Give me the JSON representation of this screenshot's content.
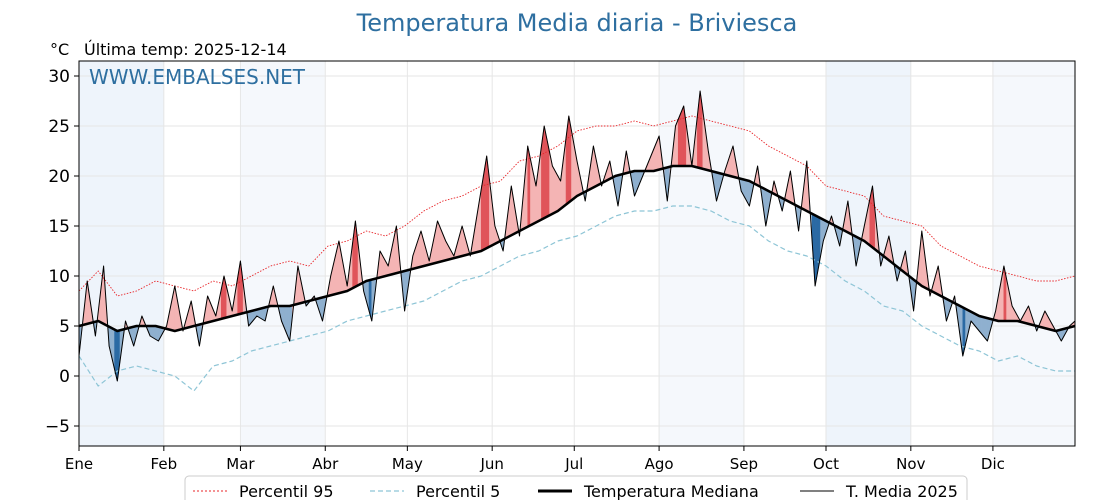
{
  "unit_label": "°C",
  "last_temp_label": "Última temp: 2025-12-14",
  "watermark": "WWW.EMBALSES.NET",
  "colors": {
    "title": "#2e6fa0",
    "p95": "#e8262a",
    "p5": "#8ec5d6",
    "median": "#000000",
    "current": "#000000",
    "above_fill": "#f4b4b4",
    "above_strong": "#e0545a",
    "below_fill": "#8fb0cf",
    "below_strong": "#2b6aa4",
    "band": "#eef4fb"
  },
  "chart_data": {
    "type": "line",
    "title": "Temperatura Media diaria - Briviesca",
    "xlabel": "",
    "ylabel": "°C",
    "ylim": [
      -7,
      31.5
    ],
    "xlim": [
      0,
      364
    ],
    "yticks": [
      -5,
      0,
      5,
      10,
      15,
      20,
      25,
      30
    ],
    "month_labels": [
      "Ene",
      "Feb",
      "Mar",
      "Abr",
      "May",
      "Jun",
      "Jul",
      "Ago",
      "Sep",
      "Oct",
      "Nov",
      "Dic"
    ],
    "month_starts": [
      0,
      31,
      59,
      90,
      120,
      151,
      181,
      212,
      243,
      273,
      304,
      334
    ],
    "grid": true,
    "legend_position": "bottom",
    "series": [
      {
        "name": "Percentil 95",
        "style": "dotted-red",
        "x": [
          0,
          7,
          14,
          21,
          28,
          35,
          42,
          49,
          56,
          63,
          70,
          77,
          84,
          91,
          98,
          105,
          112,
          119,
          126,
          133,
          140,
          147,
          154,
          161,
          168,
          175,
          182,
          189,
          196,
          203,
          210,
          217,
          224,
          231,
          238,
          245,
          252,
          259,
          266,
          273,
          280,
          287,
          294,
          301,
          308,
          315,
          322,
          329,
          336,
          343,
          350,
          357,
          364
        ],
        "values": [
          8.5,
          10.5,
          8.0,
          8.5,
          9.5,
          9.0,
          8.5,
          9.5,
          9.0,
          10.0,
          11.0,
          11.5,
          11.0,
          13.0,
          13.5,
          14.5,
          14.0,
          15.0,
          16.5,
          17.5,
          18.0,
          19.0,
          19.5,
          21.5,
          22.0,
          23.0,
          24.5,
          25.0,
          25.0,
          25.5,
          25.0,
          25.5,
          26.0,
          25.5,
          25.0,
          24.5,
          23.0,
          22.0,
          21.0,
          19.0,
          18.5,
          18.0,
          16.0,
          15.5,
          15.0,
          13.0,
          12.0,
          11.0,
          10.5,
          10.0,
          9.5,
          9.5,
          10.0
        ]
      },
      {
        "name": "Percentil 5",
        "style": "dashed-lightblue",
        "x": [
          0,
          7,
          14,
          21,
          28,
          35,
          42,
          49,
          56,
          63,
          70,
          77,
          84,
          91,
          98,
          105,
          112,
          119,
          126,
          133,
          140,
          147,
          154,
          161,
          168,
          175,
          182,
          189,
          196,
          203,
          210,
          217,
          224,
          231,
          238,
          245,
          252,
          259,
          266,
          273,
          280,
          287,
          294,
          301,
          308,
          315,
          322,
          329,
          336,
          343,
          350,
          357,
          364
        ],
        "values": [
          2.0,
          -1.0,
          0.5,
          1.0,
          0.5,
          0.0,
          -1.5,
          1.0,
          1.5,
          2.5,
          3.0,
          3.5,
          4.0,
          4.5,
          5.5,
          6.0,
          6.5,
          7.0,
          7.5,
          8.5,
          9.5,
          10.0,
          11.0,
          12.0,
          12.5,
          13.5,
          14.0,
          15.0,
          16.0,
          16.5,
          16.5,
          17.0,
          17.0,
          16.5,
          15.5,
          15.0,
          13.5,
          12.5,
          12.0,
          11.0,
          9.5,
          8.5,
          7.0,
          6.5,
          5.0,
          4.0,
          3.0,
          2.5,
          1.5,
          2.0,
          1.0,
          0.5,
          0.5
        ]
      },
      {
        "name": "Temperatura Mediana",
        "style": "solid-thick-black",
        "x": [
          0,
          7,
          14,
          21,
          28,
          35,
          42,
          49,
          56,
          63,
          70,
          77,
          84,
          91,
          98,
          105,
          112,
          119,
          126,
          133,
          140,
          147,
          154,
          161,
          168,
          175,
          182,
          189,
          196,
          203,
          210,
          217,
          224,
          231,
          238,
          245,
          252,
          259,
          266,
          273,
          280,
          287,
          294,
          301,
          308,
          315,
          322,
          329,
          336,
          343,
          350,
          357,
          364
        ],
        "values": [
          5.0,
          5.5,
          4.5,
          5.0,
          5.0,
          4.5,
          5.0,
          5.5,
          6.0,
          6.5,
          7.0,
          7.0,
          7.5,
          8.0,
          8.5,
          9.5,
          10.0,
          10.5,
          11.0,
          11.5,
          12.0,
          12.5,
          13.5,
          14.5,
          15.5,
          16.5,
          18.0,
          19.0,
          20.0,
          20.5,
          20.5,
          21.0,
          21.0,
          20.5,
          20.0,
          19.5,
          18.5,
          17.5,
          16.5,
          15.5,
          14.5,
          13.5,
          12.0,
          10.5,
          9.0,
          8.0,
          7.0,
          6.0,
          5.5,
          5.5,
          5.0,
          4.5,
          5.0
        ]
      },
      {
        "name": "T. Media 2025",
        "style": "solid-thin-black",
        "x": [
          0,
          3,
          6,
          9,
          11,
          14,
          17,
          20,
          23,
          26,
          29,
          32,
          35,
          38,
          41,
          44,
          47,
          50,
          53,
          56,
          59,
          62,
          65,
          68,
          71,
          74,
          77,
          80,
          83,
          86,
          89,
          92,
          95,
          98,
          101,
          104,
          107,
          110,
          113,
          116,
          119,
          122,
          125,
          128,
          131,
          134,
          137,
          140,
          143,
          146,
          149,
          152,
          155,
          158,
          161,
          164,
          167,
          170,
          173,
          176,
          179,
          182,
          185,
          188,
          191,
          194,
          197,
          200,
          203,
          206,
          209,
          212,
          215,
          218,
          221,
          224,
          227,
          230,
          233,
          236,
          239,
          242,
          245,
          248,
          251,
          254,
          257,
          260,
          263,
          266,
          269,
          272,
          275,
          278,
          281,
          284,
          287,
          290,
          293,
          296,
          299,
          302,
          305,
          308,
          311,
          314,
          317,
          320,
          323,
          326,
          329,
          332,
          335,
          338,
          341,
          344,
          347,
          350,
          353,
          356,
          359,
          362,
          364
        ],
        "values": [
          2.0,
          9.5,
          4.0,
          11.0,
          3.0,
          -0.5,
          5.5,
          3.0,
          6.0,
          4.0,
          3.5,
          5.0,
          9.0,
          4.5,
          7.5,
          3.0,
          8.0,
          6.0,
          10.0,
          6.5,
          11.5,
          5.0,
          6.0,
          5.5,
          9.0,
          5.5,
          3.5,
          11.0,
          7.0,
          8.0,
          5.5,
          10.0,
          13.5,
          9.0,
          15.5,
          8.5,
          5.5,
          12.5,
          11.0,
          15.0,
          6.5,
          12.0,
          14.5,
          11.5,
          15.5,
          13.5,
          12.0,
          15.0,
          12.0,
          17.0,
          22.0,
          15.0,
          12.5,
          19.0,
          14.0,
          23.0,
          19.0,
          25.0,
          21.0,
          19.5,
          26.0,
          21.5,
          17.5,
          23.0,
          19.0,
          21.5,
          17.0,
          22.5,
          18.0,
          20.0,
          22.0,
          24.0,
          17.5,
          25.0,
          27.0,
          21.0,
          28.5,
          22.5,
          17.5,
          20.5,
          23.0,
          18.5,
          17.0,
          21.0,
          15.0,
          19.5,
          16.5,
          20.5,
          14.5,
          21.5,
          9.0,
          13.5,
          16.0,
          13.0,
          17.5,
          11.0,
          15.0,
          19.0,
          11.0,
          14.0,
          9.5,
          12.5,
          6.5,
          14.5,
          8.0,
          11.0,
          5.5,
          8.0,
          2.0,
          5.5,
          4.5,
          3.5,
          6.5,
          11.0,
          7.0,
          5.5,
          7.0,
          4.5,
          6.5,
          5.0,
          3.5,
          5.0,
          5.5
        ]
      }
    ]
  }
}
